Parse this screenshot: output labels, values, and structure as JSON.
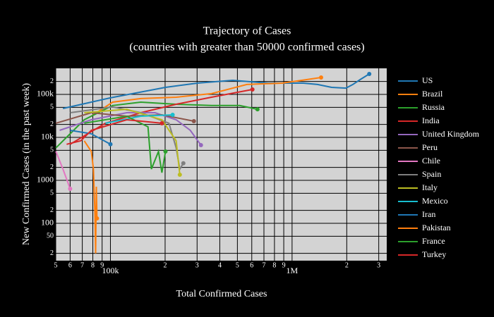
{
  "chart_data": {
    "type": "line",
    "title": "Trajectory of Cases",
    "subtitle": "(countries with greater than 50000 confirmed cases)",
    "x_label": "Total Confirmed Cases",
    "y_label": "New Confirmed Cases (in the past week)",
    "log_x": true,
    "log_y": true,
    "grid": true,
    "xlim": [
      50000,
      3320000
    ],
    "ylim": [
      13.5,
      404000
    ],
    "xticks": [
      {
        "value": 50000,
        "label": "5"
      },
      {
        "value": 60000,
        "label": "6"
      },
      {
        "value": 70000,
        "label": "7"
      },
      {
        "value": 80000,
        "label": "8"
      },
      {
        "value": 90000,
        "label": "9"
      },
      {
        "value": 100000,
        "label": "100k"
      },
      {
        "value": 200000,
        "label": "2"
      },
      {
        "value": 300000,
        "label": "3"
      },
      {
        "value": 400000,
        "label": "4"
      },
      {
        "value": 500000,
        "label": "5"
      },
      {
        "value": 600000,
        "label": "6"
      },
      {
        "value": 700000,
        "label": "7"
      },
      {
        "value": 800000,
        "label": "8"
      },
      {
        "value": 900000,
        "label": "9"
      },
      {
        "value": 1000000,
        "label": "1M"
      },
      {
        "value": 2000000,
        "label": "2"
      },
      {
        "value": 3000000,
        "label": "3"
      }
    ],
    "yticks": [
      {
        "value": 20,
        "label": "2"
      },
      50,
      100,
      {
        "value": 200,
        "label": "2"
      },
      {
        "value": 500,
        "label": "5"
      },
      1000,
      {
        "value": 2000,
        "label": "2"
      },
      {
        "value": 5000,
        "label": "5"
      },
      {
        "value": 10000,
        "label": "10k"
      },
      {
        "value": 20000,
        "label": "2"
      },
      {
        "value": 50000,
        "label": "5"
      },
      {
        "value": 100000,
        "label": "100k"
      },
      {
        "value": 200000,
        "label": "2"
      }
    ],
    "series": [
      {
        "name": "US",
        "color": "#1f77b4",
        "x": [
          54800,
          100000,
          201000,
          301000,
          471000,
          738000,
          1153000,
          1380000,
          1650000,
          1980000,
          2160000,
          2370000,
          2660000
        ],
        "values": [
          47000,
          83000,
          146000,
          183000,
          213000,
          183000,
          183000,
          170000,
          146000,
          140000,
          170000,
          221000,
          299000
        ]
      },
      {
        "name": "Brazil",
        "color": "#ff7f0e",
        "x": [
          78500,
          102700,
          147000,
          230000,
          360000,
          564000,
          883000,
          1445000
        ],
        "values": [
          31000,
          66000,
          80000,
          86000,
          104000,
          170000,
          183000,
          247000
        ]
      },
      {
        "name": "Russia",
        "color": "#2ca02c",
        "x": [
          50100,
          71800,
          102700,
          147000,
          230000,
          360000,
          515000,
          645000
        ],
        "values": [
          5700,
          25700,
          55000,
          66000,
          59000,
          55000,
          55000,
          45000
        ]
      },
      {
        "name": "India",
        "color": "#d62728",
        "x": [
          60000,
          93900,
          147000,
          230000,
          360000,
          605000
        ],
        "values": [
          6900,
          21300,
          37500,
          59000,
          86000,
          130000
        ]
      },
      {
        "name": "United Kingdom",
        "color": "#9467bd",
        "x": [
          52500,
          78500,
          123000,
          176000,
          230000,
          275000,
          315000
        ],
        "values": [
          14600,
          25700,
          37500,
          37500,
          25700,
          14600,
          6600
        ]
      },
      {
        "name": "Peru",
        "color": "#8c564b",
        "x": [
          50100,
          78500,
          123000,
          192000,
          288000
        ],
        "values": [
          21300,
          37500,
          31000,
          33500,
          23800
        ]
      },
      {
        "name": "Chile",
        "color": "#e377c2",
        "x": [
          50100,
          54800,
          60000
        ],
        "values": [
          4700,
          1830,
          635
        ]
      },
      {
        "name": "Spain",
        "color": "#7f7f7f",
        "x": [
          60000,
          102700,
          147000,
          210000,
          230000,
          241000,
          252000
        ],
        "values": [
          37500,
          51000,
          37500,
          21300,
          5700,
          1830,
          2500
        ]
      },
      {
        "name": "Italy",
        "color": "#bcbd22",
        "x": [
          71800,
          123000,
          192000,
          230000,
          241000
        ],
        "values": [
          37500,
          45000,
          25700,
          8300,
          1350
        ]
      },
      {
        "name": "Mexico",
        "color": "#17becf",
        "x": [
          93900,
          147000,
          220000
        ],
        "values": [
          21300,
          31000,
          33500
        ]
      },
      {
        "name": "Iran",
        "color": "#1f77b4",
        "x": [
          60000,
          78500,
          100000
        ],
        "values": [
          14600,
          12100,
          6900
        ]
      },
      {
        "name": "Pakistan",
        "color": "#ff7f0e",
        "x": [
          71800,
          78500,
          80600,
          82100,
          82900,
          83600,
          84300
        ],
        "values": [
          8300,
          4700,
          1830,
          190,
          20,
          710,
          130
        ]
      },
      {
        "name": "France",
        "color": "#2ca02c",
        "x": [
          71800,
          123000,
          161000,
          168000,
          184000,
          192000,
          201000
        ],
        "values": [
          21300,
          31000,
          17600,
          1830,
          4700,
          1510,
          4700
        ]
      },
      {
        "name": "Turkey",
        "color": "#d62728",
        "x": [
          57400,
          68700,
          78500,
          123000,
          192000
        ],
        "values": [
          6900,
          8300,
          14600,
          25700,
          21300
        ]
      }
    ]
  }
}
